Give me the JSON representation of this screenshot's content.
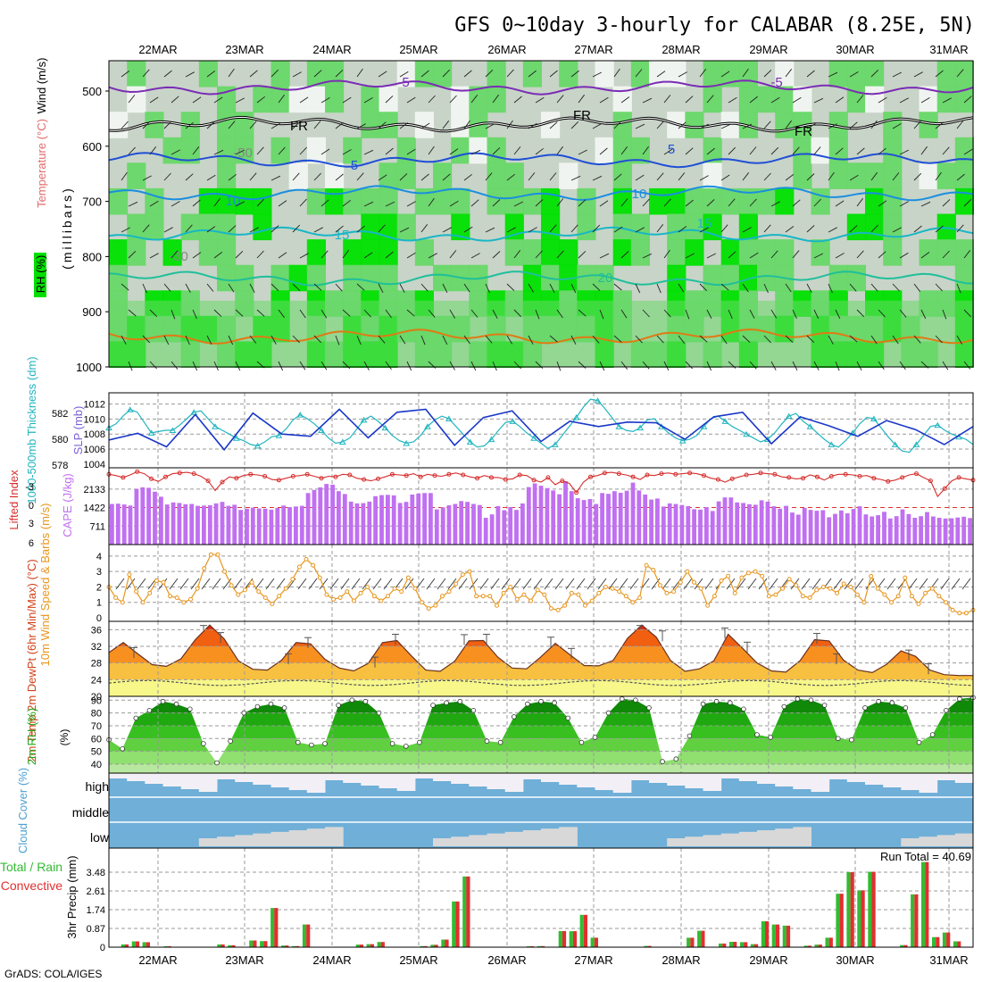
{
  "title": "GFS 0~10day 3-hourly for CALABAR (8.25E, 5N)",
  "footer": "GrADS: COLA/IGES",
  "dates": [
    "22MAR",
    "23MAR",
    "24MAR",
    "25MAR",
    "26MAR",
    "27MAR",
    "28MAR",
    "29MAR",
    "30MAR",
    "31MAR"
  ],
  "colors": {
    "frame": "#000000",
    "grid": "#9a9a9a",
    "rh_light": "#c8d4c8",
    "rh_mid": "#68d868",
    "rh_high": "#00e000",
    "temp_neg": "#7b2cb5",
    "freeze": "#000000",
    "temp_5": "#1f4fd6",
    "temp_10": "#1a8ee0",
    "temp_15": "#18b6c6",
    "temp_20": "#20bf9a",
    "temp_25": "#e07a14",
    "slp": "#1a37c8",
    "thick": "#22b5c0",
    "li": "#d62c2c",
    "cape": "#c070f0",
    "wind10": "#e8961e",
    "rh2m": "#1faa1a",
    "cloud": "#6fafd8",
    "cloud_clear": "#f2f0f6",
    "cloud_gap": "#d8d8d8",
    "precip_total": "#33bb33",
    "precip_conv": "#e03030"
  },
  "charts": [
    {
      "type": "heatmap",
      "ylabel": "(millibars)",
      "legend_labels": [
        "RH (%)",
        "Temperature (°C)",
        "Wind (m/s)"
      ],
      "y_ticks": [
        500,
        600,
        700,
        800,
        900,
        1000
      ],
      "contour_labels": [
        "-5",
        "-5",
        "FR",
        "FR",
        "FR",
        "5",
        "5",
        "10",
        "10",
        "15",
        "15",
        "20",
        "-50",
        "-30"
      ],
      "isotherms": [
        {
          "label": "-5",
          "p": 493
        },
        {
          "label": "FR",
          "p": 560
        },
        {
          "label": "5",
          "p": 625
        },
        {
          "label": "10",
          "p": 685
        },
        {
          "label": "15",
          "p": 760
        },
        {
          "label": "20",
          "p": 840
        },
        {
          "label": "25",
          "p": 945
        }
      ]
    },
    {
      "type": "line",
      "ylabel_left": "1000-500mb Thickness (dm)",
      "ylabel_right": "SLP (mb)",
      "left_ticks": [
        578,
        580,
        582
      ],
      "right_ticks": [
        1004,
        1006,
        1008,
        1010,
        1012
      ],
      "series": [
        {
          "name": "SLP (mb)",
          "values": [
            1007.2,
            1005.6,
            1005.9,
            1007.1,
            1008.1,
            1007.7,
            1007.1,
            1008.2,
            1006.3,
            1004.7,
            1006.4,
            1008.5,
            1010.6,
            1011.0,
            1009.3,
            1007.5,
            1005.9,
            1006.5,
            1008.2,
            1009.7,
            1010.8,
            1009.0,
            1007.6,
            1007.1,
            1008.0,
            1010.0,
            1011.6,
            1009.6,
            1007.7,
            1006.8,
            1008.1,
            1010.4,
            1011.3,
            1009.6,
            1007.6,
            1006.3,
            1007.5,
            1009.9,
            1011.6,
            1012.2,
            1010.9,
            1009.1,
            1007.7,
            1009.2,
            1011.3,
            1012.5,
            1010.6,
            1008.1,
            1006.5,
            1008.4,
            1010.7,
            1012.1,
            1010.2,
            1007.9,
            1007.2,
            1008.9,
            1011.1,
            1012.3,
            1010.3,
            1008.2,
            1007.0,
            1007.5,
            1009.7,
            1011.6,
            1009.7,
            1007.0,
            1004.4,
            1006.6,
            1009.0,
            1011.1,
            1012.3,
            1011.4,
            1009.6,
            1007.6,
            1005.7,
            1007.1,
            1009.5,
            1011.0,
            1009.8,
            1008.3,
            1007.3,
            1008.7,
            1011.0,
            1012.2,
            1010.3,
            1008.3,
            1007.5,
            1009.0,
            1010.9,
            1012.0,
            1010.1,
            1008.4,
            1006.7,
            1007.8,
            1009.7,
            1011.4,
            1010.3,
            1008.1,
            1006.7,
            1007.4,
            1009.1,
            1011.6,
            1009.6,
            1008.2,
            1007.7,
            1009.0,
            1010.3,
            1011.3,
            1009.8,
            1008.2,
            1006.7,
            1007.5,
            1008.6,
            1010.2,
            1009.2,
            1007.9,
            1006.6,
            1007.3,
            1008.2,
            1010.1,
            1009.0
          ]
        },
        {
          "name": "1000-500mb Thickness (dm)",
          "values": [
            580.9,
            581.2,
            581.8,
            582.3,
            582.1,
            581.3,
            580.5,
            580.6,
            580.7,
            580.7,
            581.1,
            581.6,
            582.1,
            582.2,
            581.6,
            581.0,
            580.7,
            580.4,
            580.1,
            579.9,
            579.6,
            579.5,
            579.8,
            580.2,
            580.3,
            580.8,
            581.5,
            581.9,
            581.6,
            581.2,
            580.7,
            580.1,
            579.7,
            579.8,
            580.1,
            580.8,
            581.5,
            581.8,
            581.4,
            580.9,
            580.3,
            579.9,
            579.7,
            579.8,
            580.3,
            581.0,
            581.5,
            581.8,
            581.6,
            581.0,
            580.4,
            579.8,
            579.4,
            579.5,
            580.0,
            580.7,
            581.3,
            581.4,
            581.0,
            580.5,
            580.1,
            579.7,
            579.3,
            579.6,
            580.3,
            581.0,
            581.7,
            582.5,
            583.1,
            583.0,
            582.4,
            581.7,
            581.0,
            580.7,
            580.6,
            580.9,
            581.5,
            581.6,
            581.0,
            580.5,
            580.1,
            579.9,
            580.0,
            580.3,
            581.0,
            581.6,
            581.8,
            581.4,
            581.0,
            580.7,
            580.4,
            580.1,
            579.8,
            580.0,
            580.5,
            581.2,
            581.8,
            582.0,
            581.4,
            581.0,
            580.5,
            580.0,
            579.6,
            579.4,
            579.9,
            580.5,
            581.2,
            581.7,
            581.6,
            580.9,
            580.2,
            579.6,
            579.1,
            579.0,
            579.6,
            580.3,
            581.0,
            581.1,
            580.7,
            580.4,
            580.2,
            580.0,
            579.6
          ]
        }
      ]
    },
    {
      "type": "bar",
      "ylabel_left": "Lifted Index",
      "ylabel_right": "CAPE (J/kg)",
      "left_ticks": [
        "-3",
        "0",
        "3",
        "6"
      ],
      "right_ticks": [
        "711",
        "1422",
        "2133"
      ],
      "li_values": [
        -4.8,
        -4.6,
        -4.3,
        -4.7,
        -5.2,
        -4.9,
        -4.1,
        -3.7,
        -4.4,
        -4.9,
        -5.0,
        -5.1,
        -4.9,
        -4.5,
        -3.8,
        -2.3,
        -3.6,
        -4.4,
        -4.2,
        -4.6,
        -4.8,
        -4.7,
        -4.5,
        -4.0,
        -3.9,
        -4.2,
        -4.5,
        -4.6,
        -4.8,
        -4.5,
        -4.2,
        -4.5,
        -4.4,
        -4.8,
        -4.7,
        -4.2,
        -4.0,
        -3.8,
        -4.1,
        -4.4,
        -4.8,
        -4.7,
        -4.6,
        -4.9,
        -4.4,
        -4.8,
        -4.6,
        -4.5,
        -4.8,
        -5.0,
        -4.7,
        -4.4,
        -4.2,
        -4.6,
        -4.3,
        -4.3,
        -4.0,
        -4.1,
        -4.7,
        -4.6,
        -3.9,
        -3.6,
        -4.3,
        -3.2,
        -3.8,
        -3.4,
        -2.0,
        -3.6,
        -4.4,
        -4.6,
        -5.0,
        -5.1,
        -4.9,
        -4.7,
        -4.4,
        -4.0,
        -4.7,
        -4.6,
        -4.9,
        -5.0,
        -4.8,
        -4.9,
        -5.0,
        -4.9,
        -4.6,
        -4.2,
        -4.0,
        -3.6,
        -4.1,
        -4.4,
        -4.7,
        -4.8,
        -5.0,
        -4.9,
        -4.8,
        -4.4,
        -4.3,
        -4.1,
        -4.2,
        -4.7,
        -4.4,
        -3.9,
        -4.5,
        -4.8,
        -4.8,
        -4.7,
        -4.5,
        -4.6,
        -4.2,
        -4.0,
        -3.7,
        -3.9,
        -4.3,
        -4.7,
        -4.9,
        -4.3,
        -3.8,
        -1.4,
        -2.6,
        -3.8,
        -4.3,
        -4.1,
        -3.9
      ],
      "cape_values": [
        1560,
        1570,
        1540,
        1500,
        2140,
        2200,
        2180,
        2030,
        1840,
        1540,
        1620,
        1600,
        1550,
        1560,
        1490,
        1500,
        1510,
        1580,
        1640,
        1490,
        1530,
        1330,
        1380,
        1420,
        1390,
        1380,
        1340,
        1410,
        1500,
        1440,
        1460,
        1490,
        1980,
        2100,
        2200,
        2330,
        2300,
        2050,
        1940,
        1650,
        1580,
        1590,
        1650,
        1860,
        1900,
        1910,
        1890,
        1600,
        1640,
        1920,
        1960,
        1980,
        1980,
        1350,
        1430,
        1510,
        1560,
        1670,
        1640,
        1560,
        1520,
        1030,
        1160,
        1480,
        1320,
        1440,
        1330,
        1580,
        2210,
        2350,
        2260,
        2170,
        2080,
        1930,
        2440,
        2050,
        1780,
        1710,
        1750,
        1560,
        1980,
        1950,
        2050,
        1990,
        2070,
        2380,
        2080,
        1920,
        1730,
        1770,
        1460,
        1580,
        1560,
        1520,
        1480,
        1360,
        1340,
        1440,
        1290,
        1660,
        1810,
        1810,
        1620,
        1600,
        1550,
        1530,
        1700,
        1650,
        1470,
        1380,
        1490,
        1230,
        1150,
        1410,
        1330,
        1300,
        1320,
        1050,
        1180,
        1310,
        1200,
        1370,
        1470,
        1160,
        1080,
        1130,
        1260,
        1000,
        1090,
        1350,
        1170,
        1030,
        1090,
        1250,
        1080,
        1030,
        1000,
        1010,
        1040,
        1070,
        1020
      ]
    },
    {
      "type": "line",
      "ylabel": "10m Wind Speed & Barbs (m/s)",
      "y_ticks": [
        0,
        1,
        2,
        3,
        4
      ],
      "values": [
        2.0,
        1.3,
        1.0,
        2.8,
        1.7,
        1.0,
        1.6,
        2.4,
        2.3,
        1.4,
        1.3,
        1.0,
        1.2,
        1.9,
        3.2,
        4.1,
        4.1,
        3.0,
        2.1,
        1.5,
        1.8,
        2.3,
        1.7,
        1.3,
        0.9,
        1.4,
        1.9,
        2.5,
        3.3,
        3.8,
        3.4,
        2.6,
        1.5,
        1.2,
        1.3,
        1.7,
        1.1,
        1.6,
        2.0,
        1.4,
        1.1,
        1.4,
        1.9,
        1.7,
        2.6,
        1.9,
        1.0,
        0.6,
        0.8,
        1.4,
        1.7,
        2.2,
        2.8,
        3.0,
        1.4,
        1.4,
        1.4,
        0.8,
        1.6,
        2.0,
        1.2,
        1.5,
        1.1,
        1.8,
        1.5,
        0.6,
        0.5,
        0.8,
        1.6,
        1.5,
        0.8,
        1.1,
        1.6,
        2.0,
        1.9,
        1.7,
        1.4,
        1.0,
        1.3,
        3.4,
        3.1,
        2.1,
        1.6,
        1.7,
        2.3,
        3.0,
        2.3,
        1.9,
        0.8,
        1.4,
        2.4,
        2.7,
        1.6,
        2.6,
        2.9,
        3.0,
        2.7,
        1.4,
        1.5,
        1.9,
        2.5,
        2.1,
        1.4,
        1.3,
        1.8,
        2.0,
        1.9,
        1.6,
        2.2,
        2.0,
        1.5,
        1.0,
        2.7,
        1.9,
        1.5,
        1.0,
        1.4,
        2.6,
        1.4,
        0.9,
        1.6,
        1.9,
        1.4,
        1.0,
        0.5,
        0.3,
        0.3,
        0.5
      ]
    },
    {
      "type": "area",
      "ylabel": "2m Temp 2m DewPt (6hr Min/Max) (°C)",
      "y_ticks": [
        20,
        24,
        28,
        32,
        36
      ],
      "temp_values": [
        30.5,
        32.9,
        30.2,
        27.6,
        27.2,
        29.0,
        33.6,
        37.1,
        33.8,
        28.5,
        26.5,
        26.3,
        28.7,
        32.9,
        32.6,
        28.9,
        26.8,
        26.1,
        27.9,
        32.9,
        33.4,
        29.7,
        26.3,
        26.0,
        28.4,
        33.3,
        33.4,
        29.4,
        26.8,
        26.6,
        29.5,
        32.7,
        30.0,
        27.4,
        27.3,
        28.6,
        33.9,
        37.1,
        34.2,
        28.6,
        26.0,
        26.6,
        28.5,
        34.9,
        31.5,
        28.0,
        26.1,
        25.8,
        28.6,
        33.6,
        33.3,
        28.7,
        26.3,
        25.7,
        27.7,
        30.9,
        29.6,
        26.3,
        25.2,
        25.0,
        25.0
      ]
    },
    {
      "type": "area",
      "ylabel": "2m RH (%)",
      "y_ticks": [
        40,
        50,
        60,
        70,
        80,
        90
      ],
      "values": [
        59,
        52,
        76,
        82,
        89,
        87,
        83,
        56,
        41,
        58,
        80,
        85,
        87,
        84,
        57,
        55,
        56,
        86,
        90,
        89,
        80,
        56,
        54,
        57,
        86,
        88,
        89,
        82,
        58,
        57,
        77,
        87,
        89,
        88,
        76,
        57,
        61,
        80,
        91,
        90,
        84,
        42,
        44,
        62,
        87,
        89,
        88,
        83,
        63,
        61,
        85,
        91,
        90,
        86,
        60,
        59,
        84,
        89,
        88,
        84,
        57,
        63,
        82,
        91,
        92
      ]
    },
    {
      "type": "area",
      "ylabel": "Cloud Cover (%)",
      "level_labels": [
        "high",
        "middle",
        "low"
      ]
    },
    {
      "type": "bar",
      "ylabel": "3hr Precip (mm)",
      "left_label_a": "Total / Rain",
      "left_label_b": "Convective",
      "run_total": "Run Total = 40.69",
      "y_ticks": [
        "0",
        "0.87",
        "1.74",
        "2.61",
        "3.48"
      ],
      "total_values": [
        0,
        0.13,
        0.27,
        0.23,
        0,
        0.04,
        0,
        0,
        0,
        0,
        0.13,
        0.09,
        0,
        0.31,
        0.28,
        1.82,
        0.08,
        0.05,
        1.05,
        0,
        0,
        0,
        0,
        0.12,
        0.14,
        0.24,
        0,
        0,
        0,
        0.05,
        0.11,
        0.35,
        2.12,
        3.28,
        0,
        0,
        0,
        0,
        0,
        0.04,
        0.05,
        0,
        0.75,
        0.74,
        1.5,
        0.44,
        0,
        0,
        0,
        0,
        0.06,
        0,
        0,
        0,
        0.44,
        0.76,
        0,
        0.17,
        0.25,
        0.23,
        0.14,
        1.2,
        1.05,
        1.0,
        0,
        0.07,
        0.12,
        0.44,
        2.48,
        3.48,
        2.64,
        3.5,
        0,
        0,
        0.1,
        2.45,
        3.95,
        0.47,
        0.68,
        0.27,
        0
      ]
    }
  ]
}
